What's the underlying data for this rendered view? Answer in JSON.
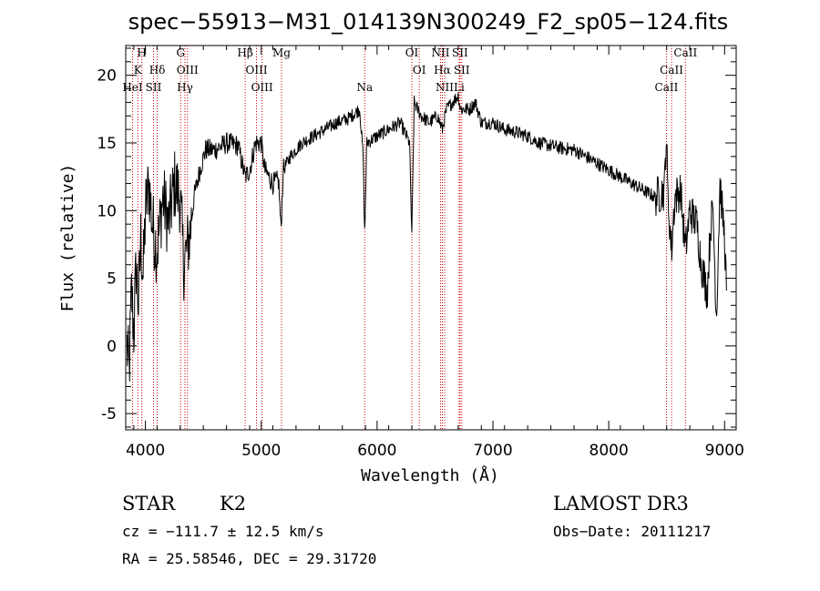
{
  "chart_data": {
    "type": "line",
    "title": "spec−55913−M31_014139N300249_F2_sp05−124.fits",
    "xlabel": "Wavelength (Å)",
    "ylabel": "Flux (relative)",
    "xlim": [
      3830,
      9100
    ],
    "ylim": [
      -6.2,
      22.2
    ],
    "x_ticks": [
      4000,
      5000,
      6000,
      7000,
      8000,
      9000
    ],
    "y_ticks": [
      -5,
      0,
      5,
      10,
      15,
      20
    ],
    "grid": false,
    "line_color": "#000000",
    "marker_color": "#cc0000",
    "spectral_lines": [
      {
        "label": "H",
        "wavelength": 3969,
        "row": 0
      },
      {
        "label": "K",
        "wavelength": 3934,
        "row": 1
      },
      {
        "label": "HeI",
        "wavelength": 3889,
        "row": 2
      },
      {
        "label": "SII",
        "wavelength": 4070,
        "row": 2
      },
      {
        "label": "Hδ",
        "wavelength": 4102,
        "row": 1
      },
      {
        "label": "G",
        "wavelength": 4304,
        "row": 0
      },
      {
        "label": "OIII",
        "wavelength": 4363,
        "row": 1
      },
      {
        "label": "Hγ",
        "wavelength": 4341,
        "row": 2
      },
      {
        "label": "Hβ",
        "wavelength": 4861,
        "row": 0
      },
      {
        "label": "OIII",
        "wavelength": 4959,
        "row": 1
      },
      {
        "label": "OIII",
        "wavelength": 5007,
        "row": 2
      },
      {
        "label": "Mg",
        "wavelength": 5175,
        "row": 0
      },
      {
        "label": "Na",
        "wavelength": 5893,
        "row": 2
      },
      {
        "label": "OI",
        "wavelength": 6300,
        "row": 0
      },
      {
        "label": "OI",
        "wavelength": 6364,
        "row": 1
      },
      {
        "label": "NII",
        "wavelength": 6548,
        "row": 0
      },
      {
        "label": "Hα",
        "wavelength": 6563,
        "row": 1
      },
      {
        "label": "NII",
        "wavelength": 6583,
        "row": 2
      },
      {
        "label": "SII",
        "wavelength": 6716,
        "row": 0
      },
      {
        "label": "SII",
        "wavelength": 6731,
        "row": 1
      },
      {
        "label": "Li",
        "wavelength": 6708,
        "row": 2
      },
      {
        "label": "CaII",
        "wavelength": 8498,
        "row": 2
      },
      {
        "label": "CaII",
        "wavelength": 8542,
        "row": 1
      },
      {
        "label": "CaII",
        "wavelength": 8662,
        "row": 0
      }
    ],
    "anchors": [
      [
        3840,
        0
      ],
      [
        3860,
        -2
      ],
      [
        3880,
        4
      ],
      [
        3900,
        1
      ],
      [
        3920,
        6
      ],
      [
        3940,
        3
      ],
      [
        3960,
        8
      ],
      [
        3980,
        5
      ],
      [
        4000,
        10
      ],
      [
        4030,
        12
      ],
      [
        4060,
        9
      ],
      [
        4100,
        7
      ],
      [
        4150,
        11
      ],
      [
        4200,
        9
      ],
      [
        4250,
        12
      ],
      [
        4300,
        11
      ],
      [
        4330,
        6
      ],
      [
        4380,
        8
      ],
      [
        4420,
        11
      ],
      [
        4470,
        13
      ],
      [
        4520,
        14.5
      ],
      [
        4600,
        14.5
      ],
      [
        4700,
        15
      ],
      [
        4800,
        14.8
      ],
      [
        4860,
        12.5
      ],
      [
        4900,
        13
      ],
      [
        4950,
        15
      ],
      [
        5000,
        15
      ],
      [
        5030,
        13
      ],
      [
        5100,
        12
      ],
      [
        5150,
        12.2
      ],
      [
        5170,
        8.5
      ],
      [
        5190,
        13
      ],
      [
        5250,
        14
      ],
      [
        5350,
        15
      ],
      [
        5450,
        15.5
      ],
      [
        5550,
        16
      ],
      [
        5650,
        16.5
      ],
      [
        5750,
        16.8
      ],
      [
        5850,
        17.5
      ],
      [
        5880,
        14
      ],
      [
        5893,
        8
      ],
      [
        5910,
        15
      ],
      [
        6000,
        15.5
      ],
      [
        6100,
        16
      ],
      [
        6200,
        16.5
      ],
      [
        6280,
        15
      ],
      [
        6300,
        8
      ],
      [
        6320,
        18
      ],
      [
        6380,
        17
      ],
      [
        6450,
        16.5
      ],
      [
        6520,
        17
      ],
      [
        6563,
        16
      ],
      [
        6600,
        17.5
      ],
      [
        6650,
        18
      ],
      [
        6700,
        18.5
      ],
      [
        6720,
        17.5
      ],
      [
        6800,
        17.5
      ],
      [
        6850,
        18
      ],
      [
        6900,
        16.5
      ],
      [
        7000,
        16.5
      ],
      [
        7100,
        16
      ],
      [
        7200,
        15.8
      ],
      [
        7300,
        15.5
      ],
      [
        7400,
        15
      ],
      [
        7500,
        14.8
      ],
      [
        7600,
        14.6
      ],
      [
        7700,
        14.5
      ],
      [
        7800,
        14
      ],
      [
        7900,
        13.5
      ],
      [
        8000,
        13
      ],
      [
        8100,
        12.5
      ],
      [
        8200,
        12
      ],
      [
        8300,
        11.5
      ],
      [
        8400,
        11
      ],
      [
        8480,
        11.5
      ],
      [
        8498,
        16
      ],
      [
        8510,
        11
      ],
      [
        8542,
        7
      ],
      [
        8570,
        11
      ],
      [
        8620,
        11.5
      ],
      [
        8662,
        7
      ],
      [
        8700,
        10
      ],
      [
        8760,
        9
      ],
      [
        8800,
        6
      ],
      [
        8850,
        4
      ],
      [
        8880,
        9
      ],
      [
        8900,
        10
      ],
      [
        8930,
        2
      ],
      [
        8960,
        12
      ],
      [
        9000,
        8
      ],
      [
        9020,
        3
      ]
    ]
  },
  "info": {
    "object_class": "STAR",
    "subclass": "K2",
    "survey": "LAMOST DR3",
    "redshift_line": "cz = −111.7 ± 12.5 km/s",
    "obs_date_line": "Obs−Date: 20111217",
    "coords_line": "RA =  25.58546, DEC =  29.31720"
  }
}
